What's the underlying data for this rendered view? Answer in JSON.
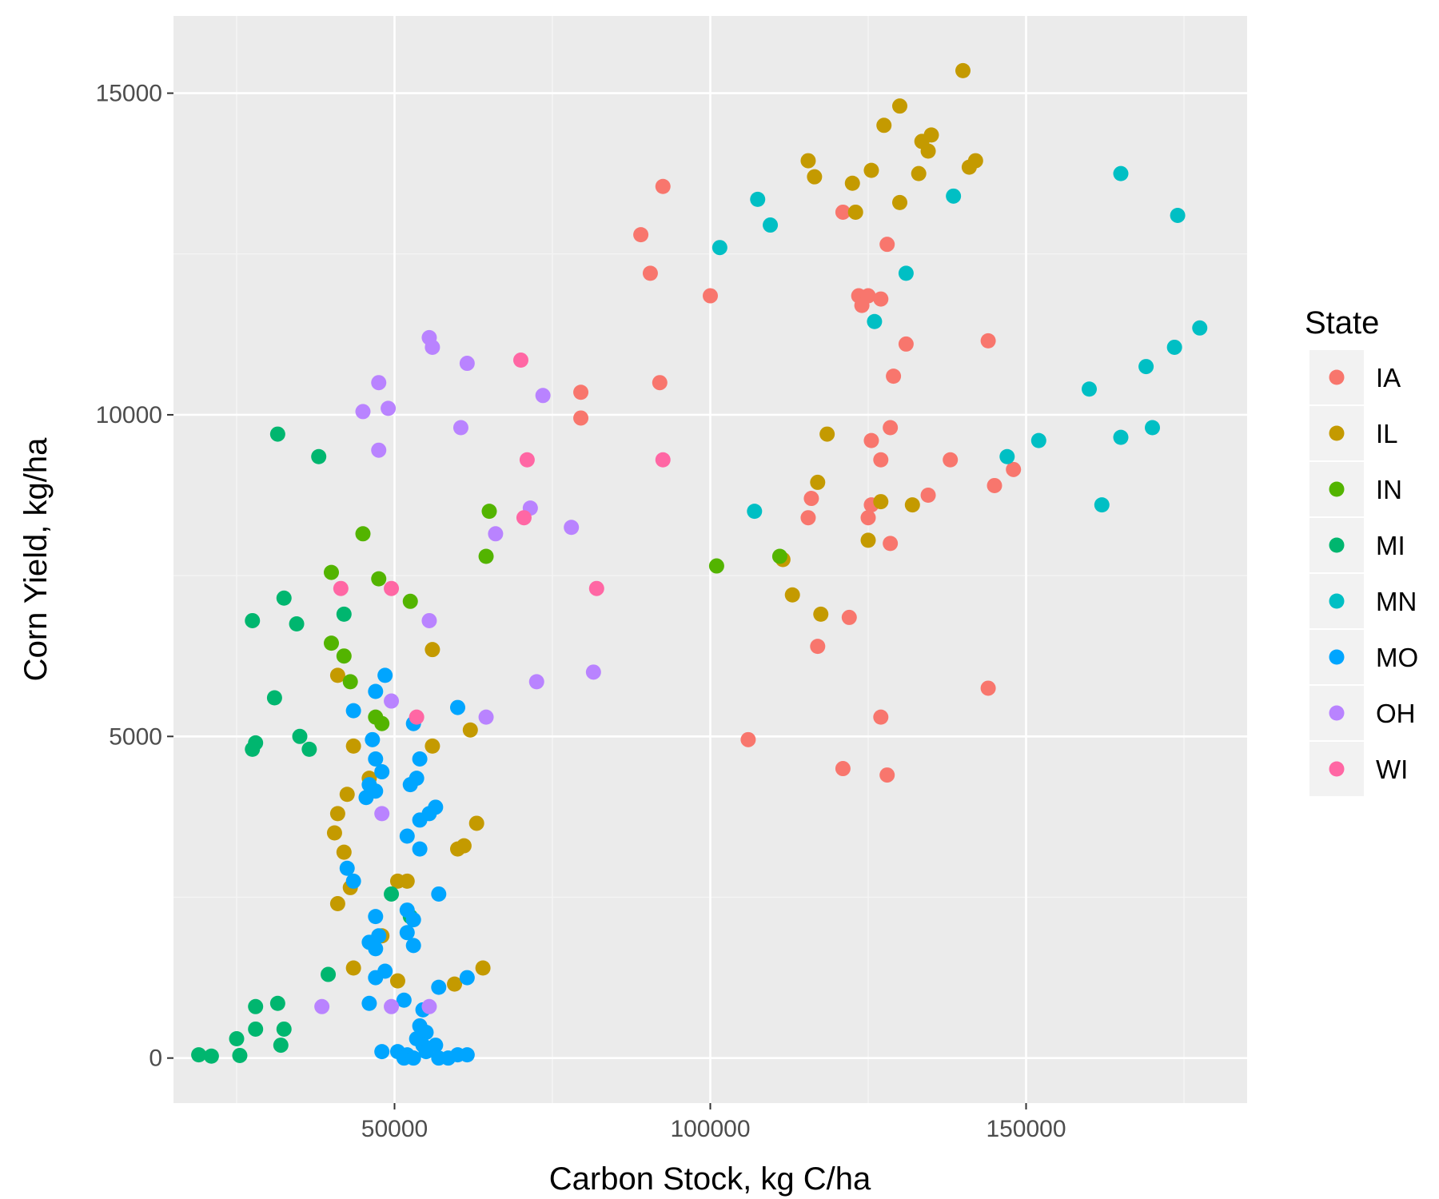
{
  "chart_data": {
    "type": "scatter",
    "title": "",
    "xlabel": "Carbon Stock, kg C/ha",
    "ylabel": "Corn Yield, kg/ha",
    "xlim": [
      15000,
      185000
    ],
    "ylim": [
      -700,
      16200
    ],
    "xticks": [
      50000,
      100000,
      150000
    ],
    "yticks": [
      0,
      5000,
      10000,
      15000
    ],
    "xtick_labels": [
      "50000",
      "100000",
      "150000"
    ],
    "ytick_labels": [
      "0",
      "5000",
      "10000",
      "15000"
    ],
    "grid": true,
    "legend": {
      "title": "State",
      "position": "right"
    },
    "series": [
      {
        "name": "IA",
        "color": "#F8766D",
        "points": [
          [
            92500,
            13550
          ],
          [
            89000,
            12800
          ],
          [
            90500,
            12200
          ],
          [
            100000,
            11850
          ],
          [
            121000,
            13150
          ],
          [
            128000,
            12650
          ],
          [
            123500,
            11850
          ],
          [
            124000,
            11700
          ],
          [
            125000,
            11850
          ],
          [
            127000,
            11800
          ],
          [
            131000,
            11100
          ],
          [
            144000,
            11150
          ],
          [
            129000,
            10600
          ],
          [
            79500,
            10350
          ],
          [
            92000,
            10500
          ],
          [
            79500,
            9950
          ],
          [
            128500,
            9800
          ],
          [
            125500,
            9600
          ],
          [
            127000,
            9300
          ],
          [
            138000,
            9300
          ],
          [
            148000,
            9150
          ],
          [
            145000,
            8900
          ],
          [
            134500,
            8750
          ],
          [
            125500,
            8600
          ],
          [
            116000,
            8700
          ],
          [
            115500,
            8400
          ],
          [
            125000,
            8400
          ],
          [
            128500,
            8000
          ],
          [
            122000,
            6850
          ],
          [
            117000,
            6400
          ],
          [
            144000,
            5750
          ],
          [
            127000,
            5300
          ],
          [
            106000,
            4950
          ],
          [
            121000,
            4500
          ],
          [
            128000,
            4400
          ]
        ]
      },
      {
        "name": "IL",
        "color": "#C49A00",
        "points": [
          [
            140000,
            15350
          ],
          [
            130000,
            14800
          ],
          [
            127500,
            14500
          ],
          [
            133500,
            14250
          ],
          [
            135000,
            14350
          ],
          [
            134500,
            14100
          ],
          [
            115500,
            13950
          ],
          [
            116500,
            13700
          ],
          [
            122500,
            13600
          ],
          [
            125500,
            13800
          ],
          [
            133000,
            13750
          ],
          [
            141000,
            13850
          ],
          [
            142000,
            13950
          ],
          [
            130000,
            13300
          ],
          [
            123000,
            13150
          ],
          [
            118500,
            9700
          ],
          [
            117000,
            8950
          ],
          [
            127000,
            8650
          ],
          [
            132000,
            8600
          ],
          [
            125000,
            8050
          ],
          [
            111500,
            7750
          ],
          [
            113000,
            7200
          ],
          [
            117500,
            6900
          ],
          [
            56000,
            6350
          ],
          [
            41000,
            5950
          ],
          [
            62000,
            5100
          ],
          [
            43500,
            4850
          ],
          [
            56000,
            4850
          ],
          [
            46000,
            4350
          ],
          [
            42500,
            4100
          ],
          [
            41000,
            3800
          ],
          [
            63000,
            3650
          ],
          [
            40500,
            3500
          ],
          [
            42000,
            3200
          ],
          [
            61000,
            3300
          ],
          [
            60000,
            3250
          ],
          [
            50500,
            2750
          ],
          [
            52000,
            2750
          ],
          [
            43000,
            2650
          ],
          [
            41000,
            2400
          ],
          [
            48000,
            1900
          ],
          [
            43500,
            1400
          ],
          [
            64000,
            1400
          ],
          [
            50500,
            1200
          ],
          [
            59500,
            1150
          ]
        ]
      },
      {
        "name": "IN",
        "color": "#53B400",
        "points": [
          [
            65000,
            8500
          ],
          [
            45000,
            8150
          ],
          [
            64500,
            7800
          ],
          [
            101000,
            7650
          ],
          [
            111000,
            7800
          ],
          [
            47500,
            7450
          ],
          [
            40000,
            7550
          ],
          [
            52500,
            7100
          ],
          [
            40000,
            6450
          ],
          [
            42000,
            6250
          ],
          [
            43000,
            5850
          ],
          [
            47000,
            5300
          ],
          [
            48000,
            5200
          ]
        ]
      },
      {
        "name": "MI",
        "color": "#00B66F",
        "points": [
          [
            31500,
            9700
          ],
          [
            38000,
            9350
          ],
          [
            32500,
            7150
          ],
          [
            42000,
            6900
          ],
          [
            27500,
            6800
          ],
          [
            34500,
            6750
          ],
          [
            31000,
            5600
          ],
          [
            35000,
            5000
          ],
          [
            28000,
            4900
          ],
          [
            27500,
            4800
          ],
          [
            36500,
            4800
          ],
          [
            49500,
            2550
          ],
          [
            52500,
            2200
          ],
          [
            39500,
            1300
          ],
          [
            28000,
            800
          ],
          [
            31500,
            850
          ],
          [
            28000,
            450
          ],
          [
            32500,
            450
          ],
          [
            25000,
            300
          ],
          [
            32000,
            200
          ],
          [
            19000,
            50
          ],
          [
            21000,
            30
          ],
          [
            25500,
            40
          ]
        ]
      },
      {
        "name": "MN",
        "color": "#00BFC4",
        "points": [
          [
            165000,
            13750
          ],
          [
            138500,
            13400
          ],
          [
            107500,
            13350
          ],
          [
            174000,
            13100
          ],
          [
            109500,
            12950
          ],
          [
            101500,
            12600
          ],
          [
            131000,
            12200
          ],
          [
            126000,
            11450
          ],
          [
            177500,
            11350
          ],
          [
            173500,
            11050
          ],
          [
            169000,
            10750
          ],
          [
            160000,
            10400
          ],
          [
            152000,
            9600
          ],
          [
            165000,
            9650
          ],
          [
            147000,
            9350
          ],
          [
            170000,
            9800
          ],
          [
            162000,
            8600
          ],
          [
            107000,
            8500
          ]
        ]
      },
      {
        "name": "MO",
        "color": "#00A5FF",
        "points": [
          [
            48500,
            5950
          ],
          [
            47000,
            5700
          ],
          [
            60000,
            5450
          ],
          [
            43500,
            5400
          ],
          [
            53000,
            5200
          ],
          [
            46500,
            4950
          ],
          [
            47000,
            4650
          ],
          [
            54000,
            4650
          ],
          [
            48000,
            4450
          ],
          [
            53500,
            4350
          ],
          [
            52500,
            4250
          ],
          [
            46000,
            4250
          ],
          [
            47000,
            4150
          ],
          [
            45500,
            4050
          ],
          [
            56500,
            3900
          ],
          [
            55500,
            3800
          ],
          [
            54000,
            3700
          ],
          [
            52000,
            3450
          ],
          [
            54000,
            3250
          ],
          [
            42500,
            2950
          ],
          [
            43500,
            2750
          ],
          [
            57000,
            2550
          ],
          [
            52000,
            2300
          ],
          [
            47000,
            2200
          ],
          [
            53000,
            2150
          ],
          [
            52000,
            1950
          ],
          [
            47500,
            1900
          ],
          [
            46000,
            1800
          ],
          [
            53000,
            1750
          ],
          [
            47000,
            1700
          ],
          [
            48500,
            1350
          ],
          [
            47000,
            1250
          ],
          [
            61500,
            1250
          ],
          [
            57000,
            1100
          ],
          [
            51500,
            900
          ],
          [
            46000,
            850
          ],
          [
            54500,
            750
          ],
          [
            54000,
            500
          ],
          [
            55000,
            400
          ],
          [
            53500,
            300
          ],
          [
            54500,
            200
          ],
          [
            56500,
            200
          ],
          [
            55000,
            100
          ],
          [
            48000,
            100
          ],
          [
            50500,
            100
          ],
          [
            52000,
            50
          ],
          [
            57000,
            0
          ],
          [
            58500,
            0
          ],
          [
            60000,
            50
          ],
          [
            61500,
            50
          ],
          [
            51500,
            0
          ],
          [
            53000,
            0
          ]
        ]
      },
      {
        "name": "OH",
        "color": "#B983FF",
        "points": [
          [
            55500,
            11200
          ],
          [
            56000,
            11050
          ],
          [
            61500,
            10800
          ],
          [
            47500,
            10500
          ],
          [
            45000,
            10050
          ],
          [
            49000,
            10100
          ],
          [
            73500,
            10300
          ],
          [
            60500,
            9800
          ],
          [
            47500,
            9450
          ],
          [
            71500,
            8550
          ],
          [
            66000,
            8150
          ],
          [
            78000,
            8250
          ],
          [
            55500,
            6800
          ],
          [
            81500,
            6000
          ],
          [
            72500,
            5850
          ],
          [
            49500,
            5550
          ],
          [
            64500,
            5300
          ],
          [
            48000,
            3800
          ],
          [
            38500,
            800
          ],
          [
            49500,
            800
          ],
          [
            55500,
            800
          ]
        ]
      },
      {
        "name": "WI",
        "color": "#FF67A4",
        "points": [
          [
            70000,
            10850
          ],
          [
            71000,
            9300
          ],
          [
            92500,
            9300
          ],
          [
            70500,
            8400
          ],
          [
            82000,
            7300
          ],
          [
            41500,
            7300
          ],
          [
            49500,
            7300
          ],
          [
            53500,
            5300
          ]
        ]
      }
    ]
  }
}
